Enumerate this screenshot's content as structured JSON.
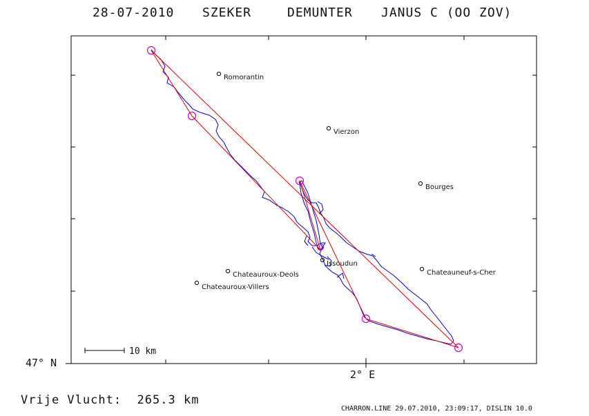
{
  "header": {
    "date": "28-07-2010",
    "pilot": "SZEKER",
    "copilot": "DEMUNTER",
    "glider": "JANUS C (OO ZOV)"
  },
  "axes": {
    "lat_label": "47° N",
    "lon_label": "2° E"
  },
  "scale_bar": {
    "label": "10 km"
  },
  "towns": [
    {
      "name": "Romorantin"
    },
    {
      "name": "Vierzon"
    },
    {
      "name": "Bourges"
    },
    {
      "name": "Issoudun"
    },
    {
      "name": "Chateauroux-Deols"
    },
    {
      "name": "Chateauroux-Villers"
    },
    {
      "name": "Chateauneuf-s-Cher"
    }
  ],
  "footer": {
    "distance_label": "Vrije Vlucht:",
    "distance_value": "265.3 km",
    "credit": "CHARRON.LINE 29.07.2010, 23:09:17, DISLIN 10.0"
  },
  "colors": {
    "track": "#0000cc",
    "task_line": "#dd0000",
    "turnpoint": "#cc00cc",
    "frame": "#000000"
  }
}
